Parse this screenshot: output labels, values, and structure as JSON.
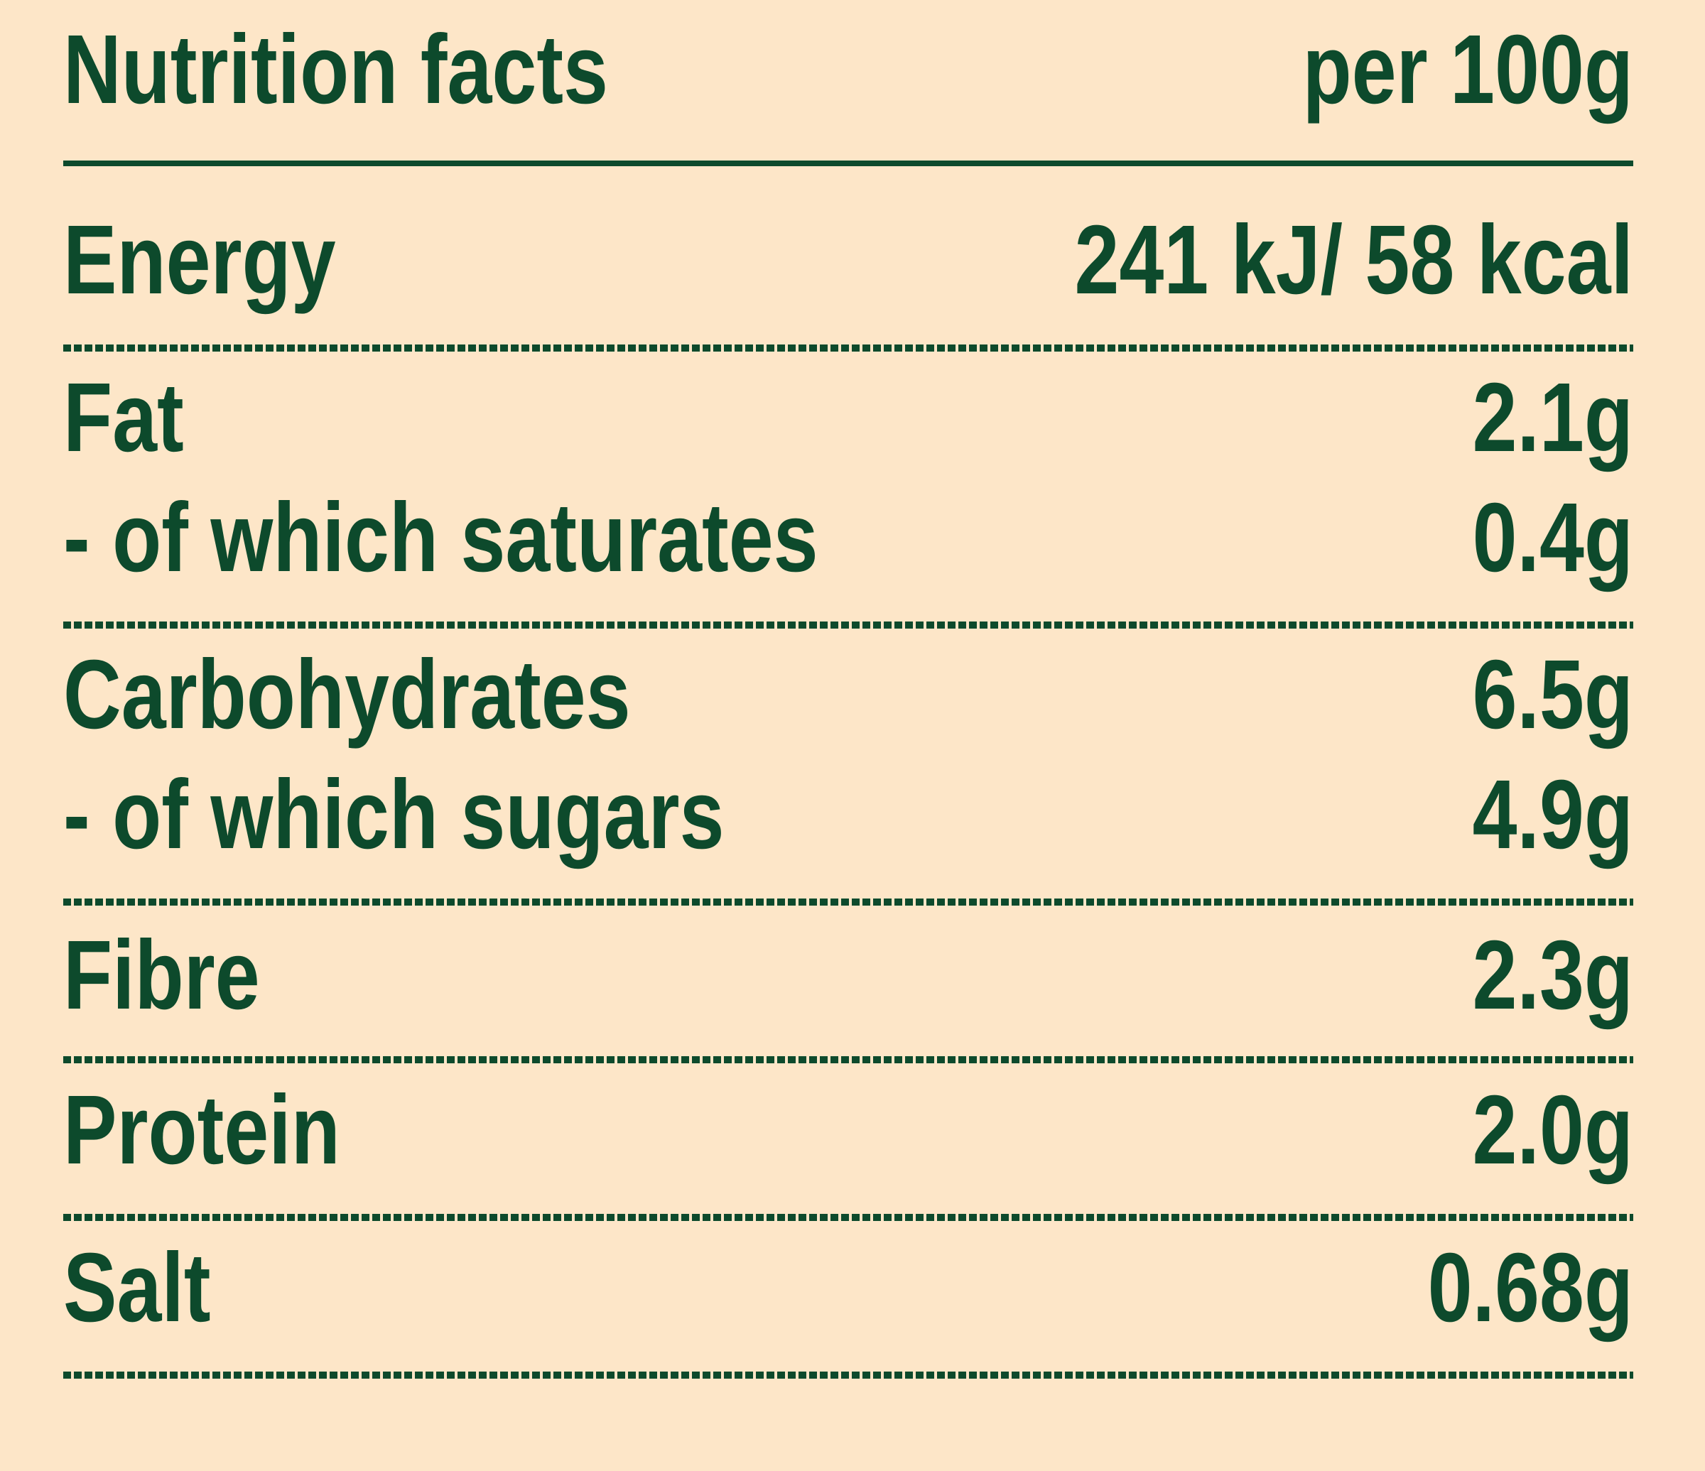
{
  "header": {
    "title": "Nutrition facts",
    "unit": "per 100g"
  },
  "table": {
    "groups": [
      [
        [
          "Energy",
          "241 kJ/ 58 kcal"
        ]
      ],
      [
        [
          "Fat",
          "2.1g"
        ],
        [
          "- of which saturates",
          "0.4g"
        ]
      ],
      [
        [
          "Carbohydrates",
          "6.5g"
        ],
        [
          "- of which sugars",
          "4.9g"
        ]
      ],
      [
        [
          "Fibre",
          "2.3g"
        ]
      ],
      [
        [
          "Protein",
          "2.0g"
        ]
      ],
      [
        [
          "Salt",
          "0.68g"
        ]
      ]
    ]
  }
}
